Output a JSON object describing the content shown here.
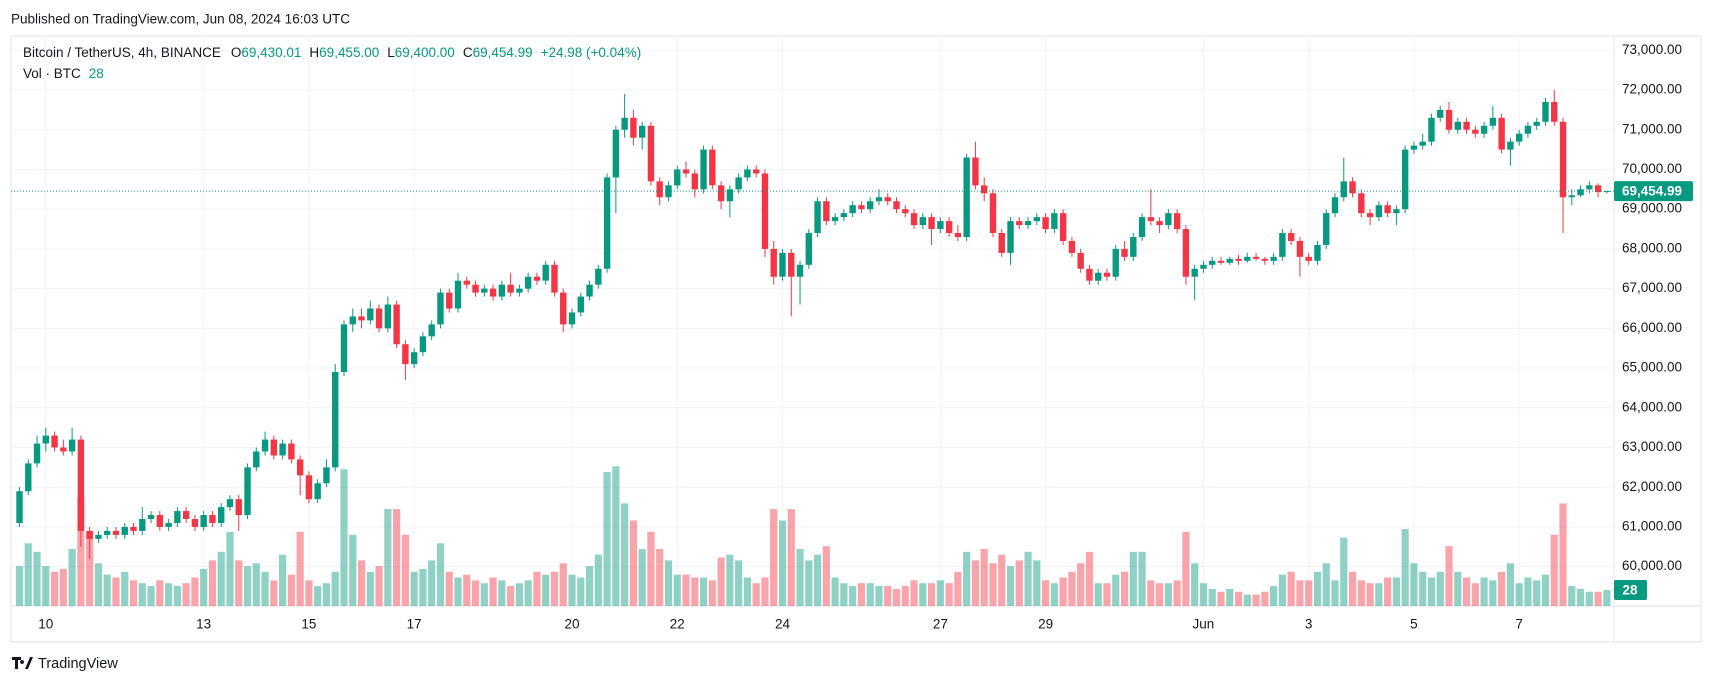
{
  "published": "Published on TradingView.com, Jun 08, 2024 16:03 UTC",
  "footer_logo": "TradingView",
  "chart_data": {
    "type": "candlestick",
    "title": "Bitcoin / TetherUS, 4h, BINANCE",
    "ohlc_legend": [
      {
        "key": "O",
        "value": "69,430.01"
      },
      {
        "key": "H",
        "value": "69,455.00"
      },
      {
        "key": "L",
        "value": "69,400.00"
      },
      {
        "key": "C",
        "value": "69,454.99"
      }
    ],
    "change_label": "+24.98 (+0.04%)",
    "volume_title": "Vol · BTC",
    "volume_legend_value": "28",
    "last_price_label": "69,454.99",
    "last_volume_label": "28",
    "up_color": "#089981",
    "down_color": "#f23645",
    "volume_up_color": "rgba(8,153,129,0.45)",
    "volume_down_color": "rgba(242,54,69,0.45)",
    "grid": true,
    "ylim": [
      59010,
      73360
    ],
    "yticks": [
      {
        "value": 60000,
        "label": "60,000.00"
      },
      {
        "value": 61000,
        "label": "61,000.00"
      },
      {
        "value": 62000,
        "label": "62,000.00"
      },
      {
        "value": 63000,
        "label": "63,000.00"
      },
      {
        "value": 64000,
        "label": "64,000.00"
      },
      {
        "value": 65000,
        "label": "65,000.00"
      },
      {
        "value": 66000,
        "label": "66,000.00"
      },
      {
        "value": 67000,
        "label": "67,000.00"
      },
      {
        "value": 68000,
        "label": "68,000.00"
      },
      {
        "value": 69000,
        "label": "69,000.00"
      },
      {
        "value": 70000,
        "label": "70,000.00"
      },
      {
        "value": 71000,
        "label": "71,000.00"
      },
      {
        "value": 72000,
        "label": "72,000.00"
      },
      {
        "value": 73000,
        "label": "73,000.00"
      }
    ],
    "y2lim": [
      0,
      1000
    ],
    "categories": [
      null,
      null,
      null,
      "10",
      null,
      null,
      null,
      null,
      null,
      null,
      null,
      null,
      null,
      null,
      null,
      null,
      null,
      null,
      null,
      null,
      null,
      "13",
      null,
      null,
      null,
      null,
      null,
      null,
      null,
      null,
      null,
      null,
      null,
      "15",
      null,
      null,
      null,
      null,
      null,
      null,
      null,
      null,
      null,
      null,
      null,
      "17",
      null,
      null,
      null,
      null,
      null,
      null,
      null,
      null,
      null,
      null,
      null,
      null,
      null,
      null,
      null,
      null,
      null,
      "20",
      null,
      null,
      null,
      null,
      null,
      null,
      null,
      null,
      null,
      null,
      null,
      "22",
      null,
      null,
      null,
      null,
      null,
      null,
      null,
      null,
      null,
      null,
      null,
      "24",
      null,
      null,
      null,
      null,
      null,
      null,
      null,
      null,
      null,
      null,
      null,
      null,
      null,
      null,
      null,
      null,
      null,
      "27",
      null,
      null,
      null,
      null,
      null,
      null,
      null,
      null,
      null,
      null,
      null,
      "29",
      null,
      null,
      null,
      null,
      null,
      null,
      null,
      null,
      null,
      null,
      null,
      null,
      null,
      null,
      null,
      null,
      null,
      "Jun",
      null,
      null,
      null,
      null,
      null,
      null,
      null,
      null,
      null,
      null,
      null,
      "3",
      null,
      null,
      null,
      null,
      null,
      null,
      null,
      null,
      null,
      null,
      null,
      "5",
      null,
      null,
      null,
      null,
      null,
      null,
      null,
      null,
      null,
      null,
      null,
      "7",
      null,
      null,
      null,
      null,
      null,
      null,
      null,
      null,
      null,
      null
    ],
    "candles": [
      [
        61100,
        62000,
        61000,
        61900
      ],
      [
        61900,
        62700,
        61800,
        62600
      ],
      [
        62600,
        63300,
        62500,
        63100
      ],
      [
        63100,
        63500,
        62900,
        63300
      ],
      [
        63300,
        63400,
        62900,
        63000
      ],
      [
        63000,
        63200,
        62800,
        62900
      ],
      [
        62900,
        63500,
        62800,
        63200
      ],
      [
        63200,
        63300,
        60500,
        60900
      ],
      [
        60900,
        61000,
        60200,
        60700
      ],
      [
        60700,
        60900,
        60600,
        60800
      ],
      [
        60800,
        61000,
        60700,
        60900
      ],
      [
        60900,
        61000,
        60700,
        60800
      ],
      [
        60800,
        61100,
        60700,
        61000
      ],
      [
        61000,
        61100,
        60800,
        60900
      ],
      [
        60900,
        61500,
        60800,
        61200
      ],
      [
        61200,
        61400,
        61100,
        61300
      ],
      [
        61300,
        61400,
        60900,
        61000
      ],
      [
        61000,
        61200,
        60900,
        61100
      ],
      [
        61100,
        61500,
        61000,
        61400
      ],
      [
        61400,
        61500,
        61100,
        61200
      ],
      [
        61200,
        61300,
        60900,
        61000
      ],
      [
        61000,
        61400,
        60900,
        61300
      ],
      [
        61300,
        61400,
        61000,
        61100
      ],
      [
        61100,
        61600,
        61000,
        61500
      ],
      [
        61500,
        61800,
        61400,
        61700
      ],
      [
        61700,
        61800,
        60900,
        61300
      ],
      [
        61300,
        62600,
        61200,
        62500
      ],
      [
        62500,
        63000,
        62400,
        62900
      ],
      [
        62900,
        63400,
        62800,
        63200
      ],
      [
        63200,
        63300,
        62700,
        62800
      ],
      [
        62800,
        63200,
        62700,
        63100
      ],
      [
        63100,
        63200,
        62600,
        62700
      ],
      [
        62700,
        62800,
        61800,
        62300
      ],
      [
        62300,
        62400,
        61600,
        61700
      ],
      [
        61700,
        62200,
        61600,
        62100
      ],
      [
        62100,
        62700,
        62000,
        62500
      ],
      [
        62500,
        65100,
        62400,
        64900
      ],
      [
        64900,
        66200,
        64800,
        66100
      ],
      [
        66100,
        66500,
        65900,
        66300
      ],
      [
        66300,
        66500,
        66000,
        66200
      ],
      [
        66200,
        66700,
        66100,
        66500
      ],
      [
        66500,
        66600,
        65900,
        66000
      ],
      [
        66000,
        66800,
        65900,
        66600
      ],
      [
        66600,
        66700,
        65500,
        65600
      ],
      [
        65600,
        65700,
        64700,
        65100
      ],
      [
        65100,
        65500,
        65000,
        65400
      ],
      [
        65400,
        65900,
        65300,
        65800
      ],
      [
        65800,
        66200,
        65700,
        66100
      ],
      [
        66100,
        67000,
        66000,
        66900
      ],
      [
        66900,
        67000,
        66400,
        66500
      ],
      [
        66500,
        67400,
        66400,
        67200
      ],
      [
        67200,
        67300,
        67000,
        67100
      ],
      [
        67100,
        67200,
        66800,
        66900
      ],
      [
        66900,
        67100,
        66800,
        67000
      ],
      [
        67000,
        67100,
        66700,
        66800
      ],
      [
        66800,
        67200,
        66700,
        67100
      ],
      [
        67100,
        67400,
        66800,
        66900
      ],
      [
        66900,
        67100,
        66800,
        67000
      ],
      [
        67000,
        67400,
        66900,
        67300
      ],
      [
        67300,
        67400,
        67100,
        67200
      ],
      [
        67200,
        67700,
        67100,
        67600
      ],
      [
        67600,
        67700,
        66800,
        66900
      ],
      [
        66900,
        67000,
        65900,
        66100
      ],
      [
        66100,
        66500,
        66000,
        66400
      ],
      [
        66400,
        66900,
        66300,
        66800
      ],
      [
        66800,
        67200,
        66700,
        67100
      ],
      [
        67100,
        67600,
        67000,
        67500
      ],
      [
        67500,
        69900,
        67400,
        69800
      ],
      [
        69800,
        71100,
        68900,
        71000
      ],
      [
        71000,
        71900,
        70800,
        71300
      ],
      [
        71300,
        71500,
        70600,
        70800
      ],
      [
        70800,
        71200,
        70500,
        71100
      ],
      [
        71100,
        71200,
        69600,
        69700
      ],
      [
        69700,
        69800,
        69100,
        69300
      ],
      [
        69300,
        69700,
        69200,
        69600
      ],
      [
        69600,
        70100,
        69500,
        70000
      ],
      [
        70000,
        70200,
        69800,
        69900
      ],
      [
        69900,
        70000,
        69300,
        69500
      ],
      [
        69500,
        70600,
        69400,
        70500
      ],
      [
        70500,
        70600,
        69500,
        69600
      ],
      [
        69600,
        69700,
        69000,
        69200
      ],
      [
        69200,
        69600,
        68800,
        69500
      ],
      [
        69500,
        69900,
        69400,
        69800
      ],
      [
        69800,
        70100,
        69700,
        70000
      ],
      [
        70000,
        70100,
        69800,
        69900
      ],
      [
        69900,
        70000,
        67800,
        68000
      ],
      [
        68000,
        68200,
        67100,
        67300
      ],
      [
        67300,
        68000,
        67200,
        67900
      ],
      [
        67900,
        68000,
        66300,
        67300
      ],
      [
        67300,
        67700,
        66600,
        67600
      ],
      [
        67600,
        68500,
        67500,
        68400
      ],
      [
        68400,
        69300,
        68300,
        69200
      ],
      [
        69200,
        69300,
        68600,
        68700
      ],
      [
        68700,
        68900,
        68600,
        68800
      ],
      [
        68800,
        69000,
        68700,
        68900
      ],
      [
        68900,
        69200,
        68800,
        69100
      ],
      [
        69100,
        69200,
        68900,
        69000
      ],
      [
        69000,
        69300,
        68900,
        69200
      ],
      [
        69200,
        69500,
        69100,
        69300
      ],
      [
        69300,
        69400,
        69100,
        69200
      ],
      [
        69200,
        69300,
        68900,
        69000
      ],
      [
        69000,
        69100,
        68800,
        68900
      ],
      [
        68900,
        69000,
        68500,
        68600
      ],
      [
        68600,
        68900,
        68500,
        68800
      ],
      [
        68800,
        68900,
        68100,
        68500
      ],
      [
        68500,
        68800,
        68400,
        68700
      ],
      [
        68700,
        68800,
        68300,
        68400
      ],
      [
        68400,
        68600,
        68200,
        68300
      ],
      [
        68300,
        70400,
        68200,
        70300
      ],
      [
        70300,
        70700,
        69500,
        69600
      ],
      [
        69600,
        69800,
        69200,
        69400
      ],
      [
        69400,
        69500,
        68300,
        68400
      ],
      [
        68400,
        68500,
        67800,
        67900
      ],
      [
        67900,
        68800,
        67600,
        68700
      ],
      [
        68700,
        68800,
        68500,
        68600
      ],
      [
        68600,
        68800,
        68500,
        68700
      ],
      [
        68700,
        68900,
        68600,
        68800
      ],
      [
        68800,
        68900,
        68400,
        68500
      ],
      [
        68500,
        69000,
        68400,
        68900
      ],
      [
        68900,
        69000,
        68100,
        68200
      ],
      [
        68200,
        68300,
        67800,
        67900
      ],
      [
        67900,
        68000,
        67400,
        67500
      ],
      [
        67500,
        67600,
        67100,
        67200
      ],
      [
        67200,
        67500,
        67100,
        67400
      ],
      [
        67400,
        67500,
        67200,
        67300
      ],
      [
        67300,
        68100,
        67200,
        68000
      ],
      [
        68000,
        68200,
        67700,
        67800
      ],
      [
        67800,
        68400,
        67700,
        68300
      ],
      [
        68300,
        68900,
        68200,
        68800
      ],
      [
        68800,
        69500,
        68600,
        68700
      ],
      [
        68700,
        68800,
        68400,
        68600
      ],
      [
        68600,
        69000,
        68500,
        68900
      ],
      [
        68900,
        69000,
        68400,
        68500
      ],
      [
        68500,
        68600,
        67100,
        67300
      ],
      [
        67300,
        67600,
        66700,
        67500
      ],
      [
        67500,
        67700,
        67400,
        67600
      ],
      [
        67600,
        67800,
        67500,
        67700
      ],
      [
        67700,
        67800,
        67600,
        67650
      ],
      [
        67650,
        67800,
        67600,
        67750
      ],
      [
        67750,
        67850,
        67600,
        67700
      ],
      [
        67700,
        67900,
        67650,
        67800
      ],
      [
        67800,
        67900,
        67700,
        67750
      ],
      [
        67750,
        67800,
        67600,
        67700
      ],
      [
        67700,
        67900,
        67600,
        67800
      ],
      [
        67800,
        68500,
        67700,
        68400
      ],
      [
        68400,
        68500,
        68100,
        68200
      ],
      [
        68200,
        68300,
        67300,
        67800
      ],
      [
        67800,
        67900,
        67600,
        67700
      ],
      [
        67700,
        68200,
        67600,
        68100
      ],
      [
        68100,
        69000,
        68000,
        68900
      ],
      [
        68900,
        69400,
        68800,
        69300
      ],
      [
        69300,
        70300,
        69200,
        69700
      ],
      [
        69700,
        69800,
        69300,
        69400
      ],
      [
        69400,
        69500,
        68800,
        68900
      ],
      [
        68900,
        69000,
        68600,
        68800
      ],
      [
        68800,
        69200,
        68700,
        69100
      ],
      [
        69100,
        69200,
        68800,
        68900
      ],
      [
        68900,
        69100,
        68600,
        69000
      ],
      [
        69000,
        70600,
        68900,
        70500
      ],
      [
        70500,
        70700,
        70400,
        70600
      ],
      [
        70600,
        70900,
        70500,
        70700
      ],
      [
        70700,
        71400,
        70600,
        71300
      ],
      [
        71300,
        71600,
        71200,
        71500
      ],
      [
        71500,
        71700,
        70900,
        71000
      ],
      [
        71000,
        71300,
        70900,
        71200
      ],
      [
        71200,
        71300,
        70900,
        71000
      ],
      [
        71000,
        71100,
        70800,
        70900
      ],
      [
        70900,
        71200,
        70800,
        71100
      ],
      [
        71100,
        71600,
        71000,
        71300
      ],
      [
        71300,
        71400,
        70400,
        70500
      ],
      [
        70500,
        70800,
        70100,
        70700
      ],
      [
        70700,
        71000,
        70600,
        70900
      ],
      [
        70900,
        71200,
        70800,
        71100
      ],
      [
        71100,
        71300,
        71000,
        71200
      ],
      [
        71200,
        71800,
        71100,
        71700
      ],
      [
        71700,
        72000,
        71100,
        71200
      ],
      [
        71200,
        71300,
        68400,
        69300
      ],
      [
        69300,
        69500,
        69100,
        69350
      ],
      [
        69350,
        69600,
        69300,
        69500
      ],
      [
        69500,
        69700,
        69400,
        69600
      ],
      [
        69600,
        69650,
        69300,
        69430.01
      ],
      [
        69430.01,
        69455,
        69400,
        69454.99
      ]
    ],
    "volumes": [
      70,
      110,
      95,
      70,
      60,
      65,
      100,
      190,
      130,
      75,
      55,
      50,
      60,
      45,
      40,
      35,
      45,
      40,
      35,
      40,
      50,
      65,
      80,
      95,
      130,
      80,
      70,
      75,
      60,
      45,
      90,
      55,
      130,
      45,
      35,
      40,
      60,
      240,
      125,
      80,
      60,
      70,
      170,
      170,
      125,
      60,
      65,
      80,
      110,
      60,
      50,
      55,
      45,
      40,
      50,
      45,
      35,
      40,
      45,
      60,
      55,
      60,
      75,
      55,
      50,
      70,
      90,
      235,
      245,
      180,
      150,
      100,
      130,
      100,
      80,
      55,
      55,
      50,
      50,
      45,
      85,
      90,
      80,
      50,
      40,
      50,
      170,
      150,
      170,
      100,
      80,
      90,
      105,
      50,
      40,
      35,
      40,
      40,
      35,
      35,
      30,
      35,
      45,
      40,
      40,
      45,
      40,
      60,
      95,
      80,
      100,
      75,
      90,
      70,
      80,
      95,
      80,
      45,
      40,
      50,
      60,
      75,
      95,
      40,
      40,
      55,
      60,
      95,
      95,
      45,
      40,
      40,
      45,
      130,
      75,
      40,
      30,
      25,
      30,
      25,
      20,
      20,
      25,
      35,
      55,
      60,
      45,
      45,
      60,
      75,
      45,
      120,
      60,
      45,
      40,
      40,
      50,
      50,
      135,
      75,
      60,
      50,
      60,
      105,
      60,
      50,
      40,
      50,
      45,
      60,
      75,
      40,
      50,
      45,
      55,
      125,
      180,
      35,
      30,
      25,
      25,
      28
    ]
  }
}
